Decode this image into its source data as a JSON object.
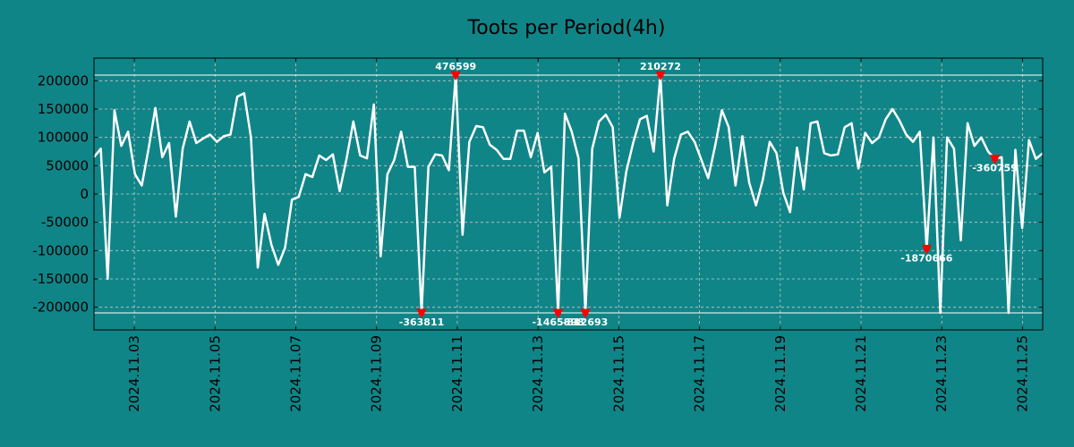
{
  "chart_data": {
    "type": "line",
    "title": "Toots per Period(4h)",
    "xlabel": "",
    "ylabel": "",
    "ylim": [
      -240000,
      240000
    ],
    "yticks": [
      -200000,
      -150000,
      -100000,
      -50000,
      0,
      50000,
      100000,
      150000,
      200000
    ],
    "ytick_labels": [
      "-200000",
      "-150000",
      "-100000",
      "-50000",
      "0",
      "50000",
      "100000",
      "150000",
      "200000"
    ],
    "xlim": [
      0.0,
      23.5
    ],
    "xticks": [
      1,
      3,
      5,
      7,
      9,
      11,
      13,
      15,
      17,
      19,
      21,
      23,
      25
    ],
    "xtick_labels": [
      "2024.11.03",
      "2024.11.05",
      "2024.11.07",
      "2024.11.09",
      "2024.11.11",
      "2024.11.13",
      "2024.11.15",
      "2024.11.17",
      "2024.11.19",
      "2024.11.21",
      "2024.11.23",
      "2024.11.25"
    ],
    "clip_lines": [
      210000,
      -210000
    ],
    "grid": true,
    "colors": {
      "background": "#108588",
      "line": "#ffffff",
      "grid": "#c8c8c8",
      "marker": "#ff0000",
      "axis": "#000000"
    },
    "series": [
      {
        "name": "toots",
        "values": [
          65000,
          80000,
          -150000,
          148000,
          85000,
          110000,
          35000,
          15000,
          80000,
          152000,
          65000,
          90000,
          -40000,
          80000,
          128000,
          90000,
          98000,
          105000,
          92000,
          102000,
          105000,
          172000,
          178000,
          100000,
          -130000,
          -35000,
          -90000,
          -125000,
          -95000,
          -10000,
          -5000,
          35000,
          30000,
          68000,
          60000,
          70000,
          5000,
          62000,
          128000,
          68000,
          63000,
          158000,
          -110000,
          35000,
          60000,
          110000,
          48000,
          48000,
          -210000,
          48000,
          70000,
          68000,
          42000,
          210000,
          -72000,
          92000,
          120000,
          118000,
          87000,
          78000,
          62000,
          62000,
          112000,
          112000,
          65000,
          108000,
          38000,
          48000,
          -210000,
          142000,
          110000,
          63000,
          -210000,
          80000,
          128000,
          140000,
          118000,
          -42000,
          40000,
          90000,
          132000,
          138000,
          75000,
          210000,
          -20000,
          62000,
          105000,
          110000,
          92000,
          60000,
          28000,
          85000,
          148000,
          118000,
          15000,
          102000,
          20000,
          -20000,
          25000,
          92000,
          72000,
          2000,
          -32000,
          82000,
          8000,
          125000,
          128000,
          72000,
          68000,
          70000,
          118000,
          125000,
          45000,
          108000,
          90000,
          100000,
          132000,
          150000,
          130000,
          105000,
          92000,
          110000,
          -97000,
          100000,
          -210000,
          100000,
          80000,
          -82000,
          125000,
          85000,
          100000,
          75000,
          62000,
          65000,
          -210000,
          78000,
          -60000,
          95000,
          62000,
          72000
        ]
      }
    ],
    "annotations": [
      {
        "index": 48,
        "label": "-363811",
        "position": "below"
      },
      {
        "index": 53,
        "label": "476599",
        "position": "above"
      },
      {
        "index": 68,
        "label": "-1465898",
        "position": "below"
      },
      {
        "index": 72,
        "label": "-812693",
        "position": "below"
      },
      {
        "index": 83,
        "label": "210272",
        "position": "above"
      },
      {
        "index": 122,
        "label": "-1870666",
        "position": "below"
      },
      {
        "index": 132,
        "label": "-360759",
        "position": "below"
      }
    ]
  }
}
